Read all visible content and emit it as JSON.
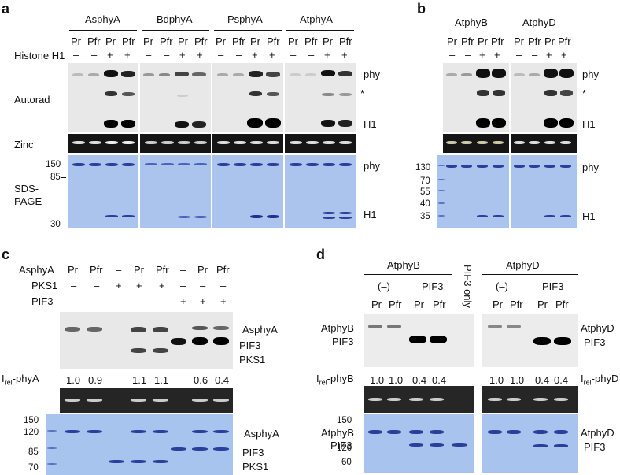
{
  "panels": {
    "a": {
      "letter": "a",
      "groups": [
        "AsphyA",
        "BdphyA",
        "PsphyA",
        "AtphyA"
      ],
      "lanes": [
        "Pr",
        "Pfr",
        "Pr",
        "Pfr"
      ],
      "histone_label": "Histone H1",
      "histone": [
        "–",
        "–",
        "+",
        "+"
      ],
      "row_labels": {
        "autorad": "Autorad",
        "zinc": "Zinc",
        "sds": "SDS-\nPAGE"
      },
      "right_labels": {
        "phy": "phy",
        "star": "*",
        "h1": "H1",
        "phy_gel": "phy",
        "h1_gel": "H1"
      },
      "markers": [
        "150",
        "85",
        "30"
      ]
    },
    "b": {
      "letter": "b",
      "groups": [
        "AtphyB",
        "AtphyD"
      ],
      "lanes": [
        "Pr",
        "Pfr",
        "Pr",
        "Pfr"
      ],
      "histone": [
        "–",
        "–",
        "+",
        "+"
      ],
      "right_labels": {
        "phy": "phy",
        "star": "*",
        "h1": "H1",
        "phy_gel": "phy",
        "h1_gel": "H1"
      },
      "markers": [
        "130",
        "70",
        "55",
        "40",
        "35"
      ]
    },
    "c": {
      "letter": "c",
      "row_labels": [
        "AsphyA",
        "PKS1",
        "PIF3"
      ],
      "rows": [
        [
          "Pr",
          "Pfr",
          "–",
          "Pr",
          "Pfr",
          "–",
          "Pr",
          "Pfr"
        ],
        [
          "–",
          "–",
          "+",
          "+",
          "+",
          "–",
          "–",
          "–"
        ],
        [
          "–",
          "–",
          "–",
          "–",
          "–",
          "+",
          "+",
          "+"
        ]
      ],
      "right_labels": [
        "AsphyA",
        "PIF3",
        "PKS1"
      ],
      "irel_label": "phyA",
      "irel_values": [
        "1.0",
        "0.9",
        "1.1",
        "1.1",
        "0.6",
        "0.4"
      ],
      "markers": [
        "150",
        "120",
        "85",
        "70"
      ],
      "gel_labels": [
        "AsphyA",
        "PIF3",
        "PKS1"
      ]
    },
    "d": {
      "letter": "d",
      "groups": [
        "AtphyB",
        "AtphyD"
      ],
      "subgroups": [
        "(–)",
        "PIF3",
        "(–)",
        "PIF3"
      ],
      "pif3_only": "PIF3 only",
      "lanes": [
        "Pr",
        "Pfr",
        "Pr",
        "Pfr"
      ],
      "left_labels": [
        "AtphyB",
        "PIF3"
      ],
      "right_labels": [
        "AtphyD",
        "PIF3"
      ],
      "irel_label_left": "phyB",
      "irel_label_right": "phyD",
      "irel_values_left": [
        "1.0",
        "1.0",
        "0.4",
        "0.4"
      ],
      "irel_values_right": [
        "1.0",
        "1.0",
        "0.4",
        "0.4"
      ],
      "markers": [
        "150",
        "120",
        "60"
      ],
      "gel_left_labels": [
        "AtphyB",
        "PIF3"
      ],
      "gel_right_labels": [
        "AtphyD",
        "PIF3"
      ]
    },
    "irel_prefix": "I",
    "irel_sub": "rel"
  }
}
